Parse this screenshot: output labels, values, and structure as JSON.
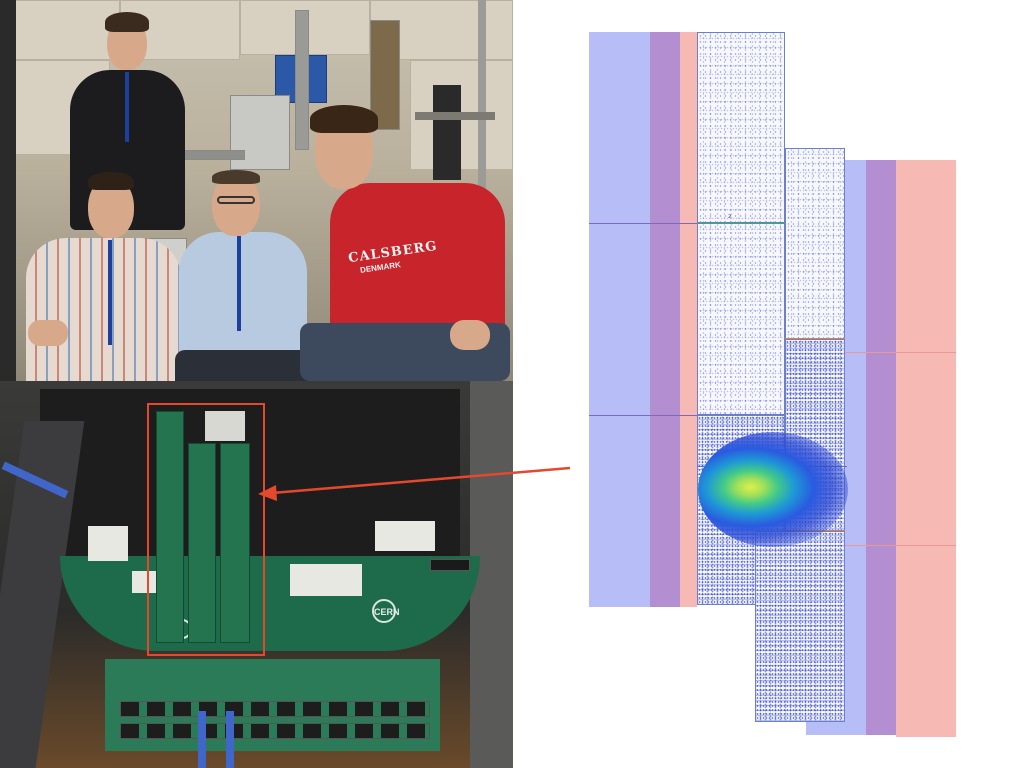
{
  "slide": {
    "background": "#ffffff"
  },
  "photo_team": {
    "shirt_text": "CALSBERG",
    "shirt_subtext": "DENMARK",
    "shirt_color": "#c8242c"
  },
  "photo_board": {
    "roi_color": "#e4492e",
    "logo_text": "CERN"
  },
  "arrow": {
    "color": "#e4492e"
  },
  "hitmap": {
    "chip_id": "2",
    "colors": {
      "blue_band": "#b6bdf7",
      "purple_band": "#b38fd1",
      "pink_band": "#f7b9b4",
      "hits": "#3a4fc4",
      "beam_core": "#e0ef4a"
    }
  }
}
